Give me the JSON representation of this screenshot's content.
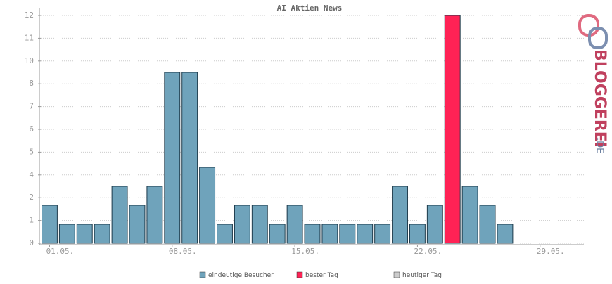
{
  "chart_data": {
    "type": "bar",
    "title": "AI Aktien News",
    "categories": [
      "01.05.",
      null,
      null,
      null,
      null,
      null,
      null,
      "08.05.",
      null,
      null,
      null,
      null,
      null,
      null,
      "15.05.",
      null,
      null,
      null,
      null,
      null,
      null,
      "22.05.",
      null,
      null,
      null,
      null,
      null,
      null,
      "29.05.",
      null,
      null
    ],
    "series": [
      {
        "name": "eindeutige Besucher",
        "color": "#6fa3bb",
        "values": [
          2,
          1,
          1,
          1,
          3,
          2,
          3,
          9,
          9,
          4,
          1,
          2,
          2,
          1,
          2,
          1,
          1,
          1,
          1,
          1,
          3,
          1,
          2,
          null,
          3,
          2,
          1,
          0,
          0,
          0,
          0
        ]
      },
      {
        "name": "bester Tag",
        "color": "#ff2255",
        "values": [
          null,
          null,
          null,
          null,
          null,
          null,
          null,
          null,
          null,
          null,
          null,
          null,
          null,
          null,
          null,
          null,
          null,
          null,
          null,
          null,
          null,
          null,
          null,
          12,
          null,
          null,
          null,
          null,
          null,
          null,
          null
        ]
      },
      {
        "name": "heutiger Tag",
        "color": "#cccccc",
        "values": [
          null,
          null,
          null,
          null,
          null,
          null,
          null,
          null,
          null,
          null,
          null,
          null,
          null,
          null,
          null,
          null,
          null,
          null,
          null,
          null,
          null,
          null,
          null,
          null,
          null,
          null,
          null,
          null,
          null,
          null,
          null
        ]
      }
    ],
    "ylim": [
      0,
      12
    ],
    "yticks": [
      0,
      {
        "value": 1.2,
        "label": "1"
      },
      {
        "value": 2.4,
        "label": "2"
      },
      {
        "value": 3.6,
        "label": "4"
      },
      {
        "value": 4.8,
        "label": "5"
      },
      {
        "value": 6,
        "label": "6"
      },
      {
        "value": 7.2,
        "label": "7"
      },
      {
        "value": 8.4,
        "label": "8"
      },
      {
        "value": 9.6,
        "label": "10"
      },
      {
        "value": 10.8,
        "label": "11"
      },
      12
    ],
    "grid": true
  },
  "logo": {
    "name": "BLOGGEREI",
    "suffix": ".DE"
  }
}
